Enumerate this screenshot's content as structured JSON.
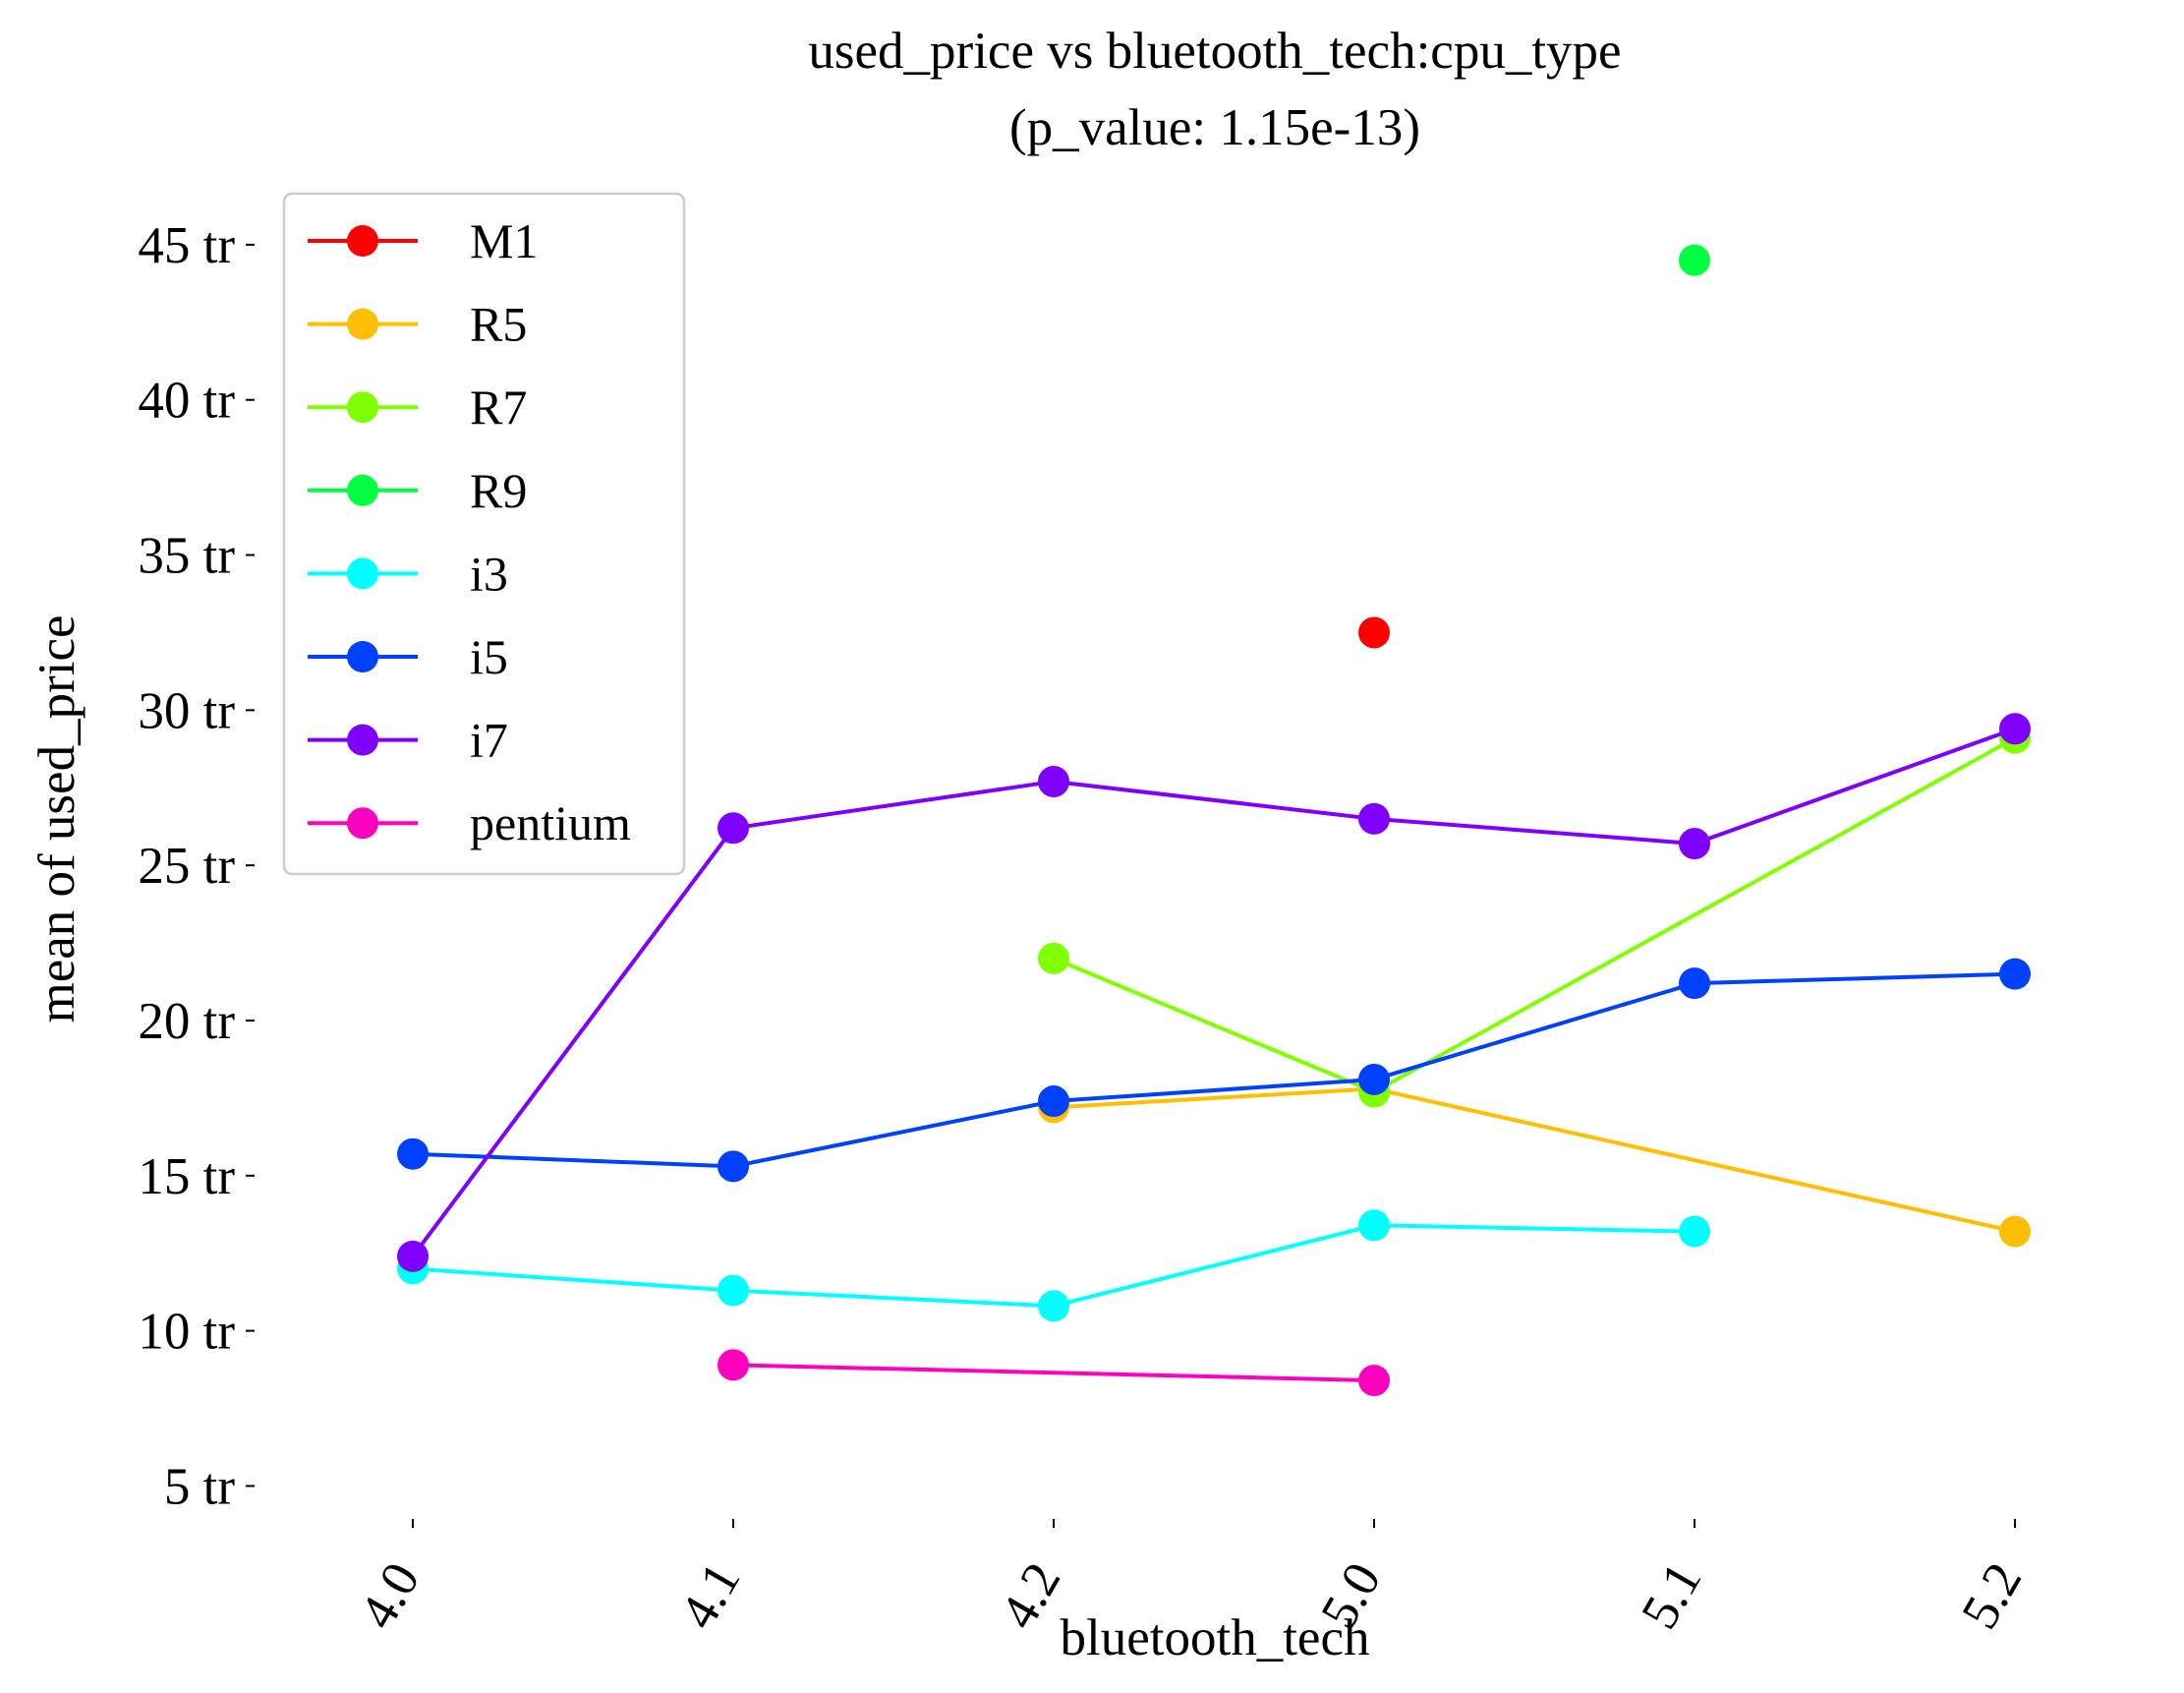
{
  "chart_data": {
    "type": "line",
    "title": "used_price vs bluetooth_tech:cpu_type",
    "subtitle": "(p_value: 1.15e-13)",
    "xlabel": "bluetooth_tech",
    "ylabel": "mean of used_price",
    "categories": [
      "4.0",
      "4.1",
      "4.2",
      "5.0",
      "5.1",
      "5.2"
    ],
    "y_ticks": [
      {
        "value": 5,
        "label": "5 tr"
      },
      {
        "value": 10,
        "label": "10 tr"
      },
      {
        "value": 15,
        "label": "15 tr"
      },
      {
        "value": 20,
        "label": "20 tr"
      },
      {
        "value": 25,
        "label": "25 tr"
      },
      {
        "value": 30,
        "label": "30 tr"
      },
      {
        "value": 35,
        "label": "35 tr"
      },
      {
        "value": 40,
        "label": "40 tr"
      },
      {
        "value": 45,
        "label": "45 tr"
      }
    ],
    "ylim": [
      4,
      47.5
    ],
    "y_unit": "tr",
    "grid": false,
    "legend_position": "top-left",
    "series": [
      {
        "name": "M1",
        "color": "#ff0000",
        "values": [
          null,
          null,
          null,
          32.5,
          null,
          null
        ]
      },
      {
        "name": "R5",
        "color": "#ffbf00",
        "values": [
          null,
          null,
          17.2,
          17.8,
          null,
          13.2
        ]
      },
      {
        "name": "R7",
        "color": "#80ff00",
        "values": [
          null,
          null,
          22.0,
          17.7,
          null,
          29.1
        ]
      },
      {
        "name": "R9",
        "color": "#00ff40",
        "values": [
          null,
          null,
          null,
          null,
          44.5,
          null
        ]
      },
      {
        "name": "i3",
        "color": "#00ffff",
        "values": [
          12.0,
          11.3,
          10.8,
          13.4,
          13.2,
          null
        ]
      },
      {
        "name": "i5",
        "color": "#0040ff",
        "values": [
          15.7,
          15.3,
          17.4,
          18.1,
          21.2,
          21.5
        ]
      },
      {
        "name": "i7",
        "color": "#8000ff",
        "values": [
          12.4,
          26.2,
          27.7,
          26.5,
          25.7,
          29.4
        ]
      },
      {
        "name": "pentium",
        "color": "#ff00bf",
        "values": [
          null,
          8.9,
          null,
          8.4,
          null,
          null
        ]
      }
    ]
  }
}
